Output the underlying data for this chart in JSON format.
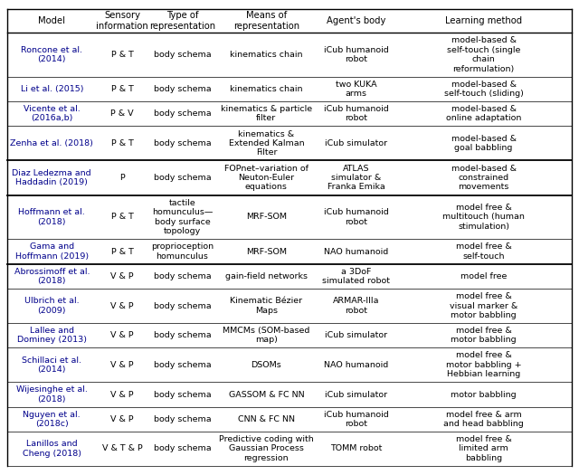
{
  "headers": [
    "Model",
    "Sensory\ninformation",
    "Type of\nrepresentation",
    "Means of\nrepresentation",
    "Agent's body",
    "Learning method"
  ],
  "rows": [
    [
      "Roncone et al.\n(2014)",
      "P & T",
      "body schema",
      "kinematics chain",
      "iCub humanoid\nrobot",
      "model-based &\nself-touch (single\nchain\nreformulation)"
    ],
    [
      "Li et al. (2015)",
      "P & T",
      "body schema",
      "kinematics chain",
      "two KUKA\narms",
      "model-based &\nself-touch (sliding)"
    ],
    [
      "Vicente et al.\n(2016a,b)",
      "P & V",
      "body schema",
      "kinematics & particle\nfilter",
      "iCub humanoid\nrobot",
      "model-based &\nonline adaptation"
    ],
    [
      "Zenha et al. (2018)",
      "P & T",
      "body schema",
      "kinematics &\nExtended Kalman\nFilter",
      "iCub simulator",
      "model-based &\ngoal babbling"
    ],
    [
      "Diaz Ledezma and\nHaddadin (2019)",
      "P",
      "body schema",
      "FOPnet–variation of\nNeuton-Euler\nequations",
      "ATLAS\nsimulator &\nFranka Emika",
      "model-based &\nconstrained\nmovements"
    ],
    [
      "Hoffmann et al.\n(2018)",
      "P & T",
      "tactile\nhomunculus—\nbody surface\ntopology",
      "MRF-SOM",
      "iCub humanoid\nrobot",
      "model free &\nmultitouch (human\nstimulation)"
    ],
    [
      "Gama and\nHoffmann (2019)",
      "P & T",
      "proprioception\nhomunculus",
      "MRF-SOM",
      "NAO humanoid",
      "model free &\nself-touch"
    ],
    [
      "Abrossimoff et al.\n(2018)",
      "V & P",
      "body schema",
      "gain-field networks",
      "a 3DoF\nsimulated robot",
      "model free"
    ],
    [
      "Ulbrich et al.\n(2009)",
      "V & P",
      "body schema",
      "Kinematic Bézier\nMaps",
      "ARMAR-IIIa\nrobot",
      "model free &\nvisual marker &\nmotor babbling"
    ],
    [
      "Lallee and\nDominey (2013)",
      "V & P",
      "body schema",
      "MMCMs (SOM-based\nmap)",
      "iCub simulator",
      "model free &\nmotor babbling"
    ],
    [
      "Schillaci et al.\n(2014)",
      "V & P",
      "body schema",
      "DSOMs",
      "NAO humanoid",
      "model free &\nmotor babbling +\nHebbian learning"
    ],
    [
      "Wijesinghe et al.\n(2018)",
      "V & P",
      "body schema",
      "GASSOM & FC NN",
      "iCub simulator",
      "motor babbling"
    ],
    [
      "Nguyen et al.\n(2018c)",
      "V & P",
      "body schema",
      "CNN & FC NN",
      "iCub humanoid\nrobot",
      "model free & arm\nand head babbling"
    ],
    [
      "Lanillos and\nCheng (2018)",
      "V & T & P",
      "body schema",
      "Predictive coding with\nGaussian Process\nregression",
      "TOMM robot",
      "model free &\nlimited arm\nbabbling"
    ]
  ],
  "header_color": "#000000",
  "link_color": "#00008B",
  "text_color": "#000000",
  "bg_color": "#ffffff",
  "thick_after": [
    3,
    4,
    6
  ],
  "font_size": 6.8,
  "header_font_size": 7.2
}
